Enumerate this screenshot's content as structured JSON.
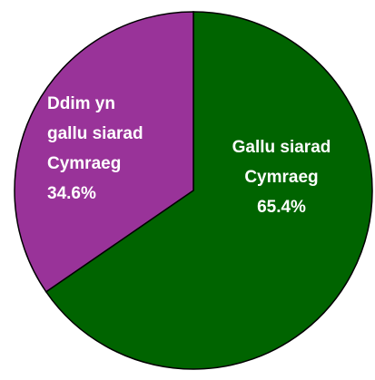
{
  "chart_data": {
    "type": "pie",
    "categories": [
      "Gallu siarad Cymraeg",
      "Ddim yn gallu siarad Cymraeg"
    ],
    "values": [
      65.4,
      34.6
    ],
    "value_labels": [
      "65.4%",
      "34.6%"
    ],
    "colors": [
      "#006400",
      "#993399"
    ]
  }
}
